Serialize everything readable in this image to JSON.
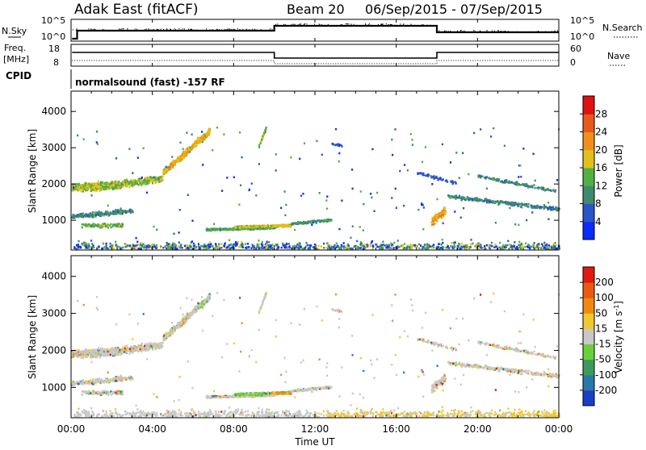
{
  "header": {
    "radar": "Adak East (fitACF)",
    "beam": "Beam 20",
    "dates": "06/Sep/2015 - 07/Sep/2015"
  },
  "nsky_panel": {
    "left_label": "N.Sky",
    "right_label": "N.Search",
    "y_ticks_left": [
      "10^5",
      "10^0"
    ],
    "y_ticks_right": [
      "10^5",
      "10^0"
    ]
  },
  "freq_panel": {
    "left_label_line1": "Freq.",
    "left_label_line2": "[MHz]",
    "right_label": "Nave",
    "y_ticks_left": [
      "18",
      "8"
    ],
    "y_ticks_right": [
      "60",
      "0"
    ]
  },
  "cpid_panel": {
    "left_label": "CPID",
    "program": "normalsound (fast) -157 RF"
  },
  "chart_data": [
    {
      "type": "heatmap",
      "name": "power",
      "ylabel": "Slant Range [km]",
      "ylim": [
        180,
        4560
      ],
      "y_ticks": [
        1000,
        2000,
        3000,
        4000
      ],
      "colorbar_label": "Power [dB]",
      "colorbar_ticks": [
        4,
        8,
        12,
        16,
        20,
        24,
        28
      ],
      "colorbar_colors": [
        "#0a2bff",
        "#2a55c8",
        "#3f8a6e",
        "#52b046",
        "#e2c01a",
        "#f0901a",
        "#e85a1a",
        "#e01010"
      ]
    },
    {
      "type": "heatmap",
      "name": "velocity",
      "ylabel": "Slant Range [km]",
      "ylim": [
        180,
        4560
      ],
      "y_ticks": [
        1000,
        2000,
        3000,
        4000
      ],
      "colorbar_label": "Velocity [m s",
      "colorbar_label_sup": "-1",
      "colorbar_label_end": "]",
      "colorbar_ticks": [
        200,
        100,
        50,
        15,
        -15,
        -50,
        -100,
        -200
      ],
      "colorbar_colors": [
        "#1a3ec8",
        "#2a78a8",
        "#3e9a5a",
        "#6ad03a",
        "#c8c8c8",
        "#f0c830",
        "#f08a10",
        "#e85a10",
        "#e01a10"
      ]
    }
  ],
  "x_axis": {
    "label": "Time UT",
    "ticks": [
      "00:00",
      "04:00",
      "08:00",
      "12:00",
      "16:00",
      "20:00",
      "00:00"
    ]
  }
}
